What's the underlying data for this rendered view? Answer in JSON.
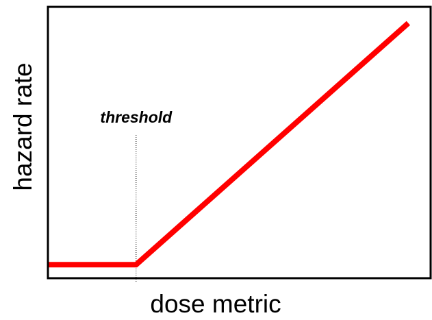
{
  "chart_data": {
    "type": "line",
    "x_label": "dose metric",
    "y_label": "hazard rate",
    "x": [
      0,
      23,
      94
    ],
    "series": [
      {
        "color": "#ff0000",
        "values": [
          5,
          5,
          94
        ]
      }
    ],
    "xlim": [
      0,
      100
    ],
    "ylim": [
      0,
      100
    ],
    "annotations": [
      {
        "text": "threshold",
        "x": 23
      }
    ]
  }
}
